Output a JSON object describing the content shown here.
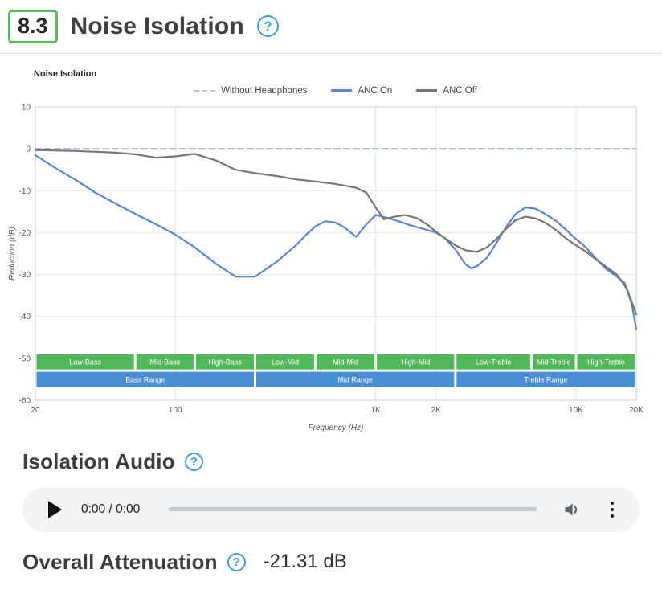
{
  "header": {
    "score": "8.3",
    "title": "Noise Isolation"
  },
  "icons": {
    "help_glyph": "?",
    "help": "question-mark-circle-icon",
    "play": "play-triangle-icon",
    "volume": "speaker-medium-icon",
    "menu": "kebab-menu-icon"
  },
  "isolation_audio": {
    "title": "Isolation Audio",
    "player": {
      "time": "0:00 / 0:00"
    }
  },
  "overall_attenuation": {
    "label": "Overall Attenuation",
    "value": "-21.31 dB"
  },
  "colors": {
    "score_border": "#5cb860",
    "help_blue": "#3ea0d5",
    "player_bg": "#f1f3f4",
    "band_green": "#53b85a",
    "band_blue": "#4a8fd4",
    "anc_on": "#5e86c9",
    "anc_off": "#767676",
    "without_headphones": "#b6bdeb",
    "grid": "#e6e6e6"
  },
  "chart_data": {
    "type": "line",
    "title": "Noise Isolation",
    "xlabel": "Frequency (Hz)",
    "ylabel": "Reduction (dB)",
    "x_scale": "log",
    "grid": true,
    "legend_position": "top",
    "xlim": [
      20,
      20000
    ],
    "ylim": [
      -60,
      10
    ],
    "y_ticks": [
      10,
      0,
      -10,
      -20,
      -30,
      -40,
      -50,
      -60
    ],
    "x_ticks": [
      [
        20,
        "20"
      ],
      [
        100,
        "100"
      ],
      [
        1000,
        "1K"
      ],
      [
        2000,
        "2K"
      ],
      [
        10000,
        "10K"
      ],
      [
        20000,
        "20K"
      ]
    ],
    "series": [
      {
        "name": "Without Headphones",
        "color": "#b6bdeb",
        "dash": true,
        "x": [
          20,
          20000
        ],
        "y": [
          0,
          0
        ]
      },
      {
        "name": "ANC On",
        "color": "#5e86c9",
        "dash": false,
        "x": [
          20,
          25,
          32,
          40,
          50,
          63,
          80,
          100,
          125,
          160,
          200,
          250,
          320,
          400,
          450,
          500,
          560,
          630,
          700,
          800,
          900,
          1000,
          1150,
          1300,
          1500,
          1700,
          2000,
          2200,
          2500,
          2800,
          3000,
          3200,
          3600,
          4000,
          4500,
          5000,
          5600,
          6300,
          7000,
          8000,
          9000,
          10000,
          11200,
          12500,
          14000,
          16000,
          17500,
          19000,
          20000
        ],
        "y": [
          -1.5,
          -4.5,
          -7.5,
          -10.5,
          -13,
          -15.5,
          -18,
          -20.5,
          -23.5,
          -27.5,
          -30.5,
          -30.5,
          -27,
          -23,
          -20.5,
          -18.5,
          -17.3,
          -17.6,
          -18.8,
          -21,
          -18,
          -15.8,
          -16.5,
          -17.3,
          -18.3,
          -19,
          -20,
          -21.2,
          -24,
          -27.5,
          -28.5,
          -28,
          -26,
          -22.5,
          -18.5,
          -15.5,
          -14,
          -14.3,
          -15.5,
          -17.3,
          -19.5,
          -21.5,
          -23.5,
          -26,
          -28.5,
          -30.5,
          -32,
          -37,
          -43
        ]
      },
      {
        "name": "ANC Off",
        "color": "#767676",
        "dash": false,
        "x": [
          20,
          32,
          50,
          63,
          80,
          100,
          125,
          160,
          200,
          250,
          320,
          400,
          500,
          630,
          800,
          900,
          1000,
          1100,
          1250,
          1400,
          1600,
          1800,
          2000,
          2200,
          2500,
          2800,
          3200,
          3600,
          4000,
          4500,
          5000,
          5600,
          6300,
          7000,
          8000,
          9000,
          10000,
          11200,
          12500,
          14000,
          16000,
          18000,
          20000
        ],
        "y": [
          -0.3,
          -0.5,
          -0.9,
          -1.3,
          -2.1,
          -1.8,
          -1.2,
          -2.8,
          -5,
          -5.8,
          -6.5,
          -7.3,
          -7.8,
          -8.4,
          -9.3,
          -10.5,
          -14,
          -16.8,
          -16.2,
          -15.8,
          -16.5,
          -18,
          -19.8,
          -21.2,
          -23,
          -24.2,
          -24.6,
          -23.5,
          -21.5,
          -19,
          -17,
          -16.2,
          -16.6,
          -17.6,
          -19.5,
          -21.5,
          -23,
          -24.5,
          -26.3,
          -28,
          -30,
          -33.5,
          -39.5
        ]
      }
    ],
    "bands": [
      {
        "row": "sub",
        "color": "#53b85a",
        "items": [
          {
            "label": "Low-Bass",
            "from": 20,
            "to": 63
          },
          {
            "label": "Mid-Bass",
            "from": 63,
            "to": 125
          },
          {
            "label": "High-Bass",
            "from": 125,
            "to": 250
          },
          {
            "label": "Low-Mid",
            "from": 250,
            "to": 500
          },
          {
            "label": "Mid-Mid",
            "from": 500,
            "to": 1000
          },
          {
            "label": "High-Mid",
            "from": 1000,
            "to": 2500
          },
          {
            "label": "Low-Treble",
            "from": 2500,
            "to": 6000
          },
          {
            "label": "Mid-Treble",
            "from": 6000,
            "to": 10000
          },
          {
            "label": "High-Treble",
            "from": 10000,
            "to": 20000
          }
        ]
      },
      {
        "row": "range",
        "color": "#4a8fd4",
        "items": [
          {
            "label": "Bass Range",
            "from": 20,
            "to": 250
          },
          {
            "label": "Mid Range",
            "from": 250,
            "to": 2500
          },
          {
            "label": "Treble Range",
            "from": 2500,
            "to": 20000
          }
        ]
      }
    ]
  }
}
